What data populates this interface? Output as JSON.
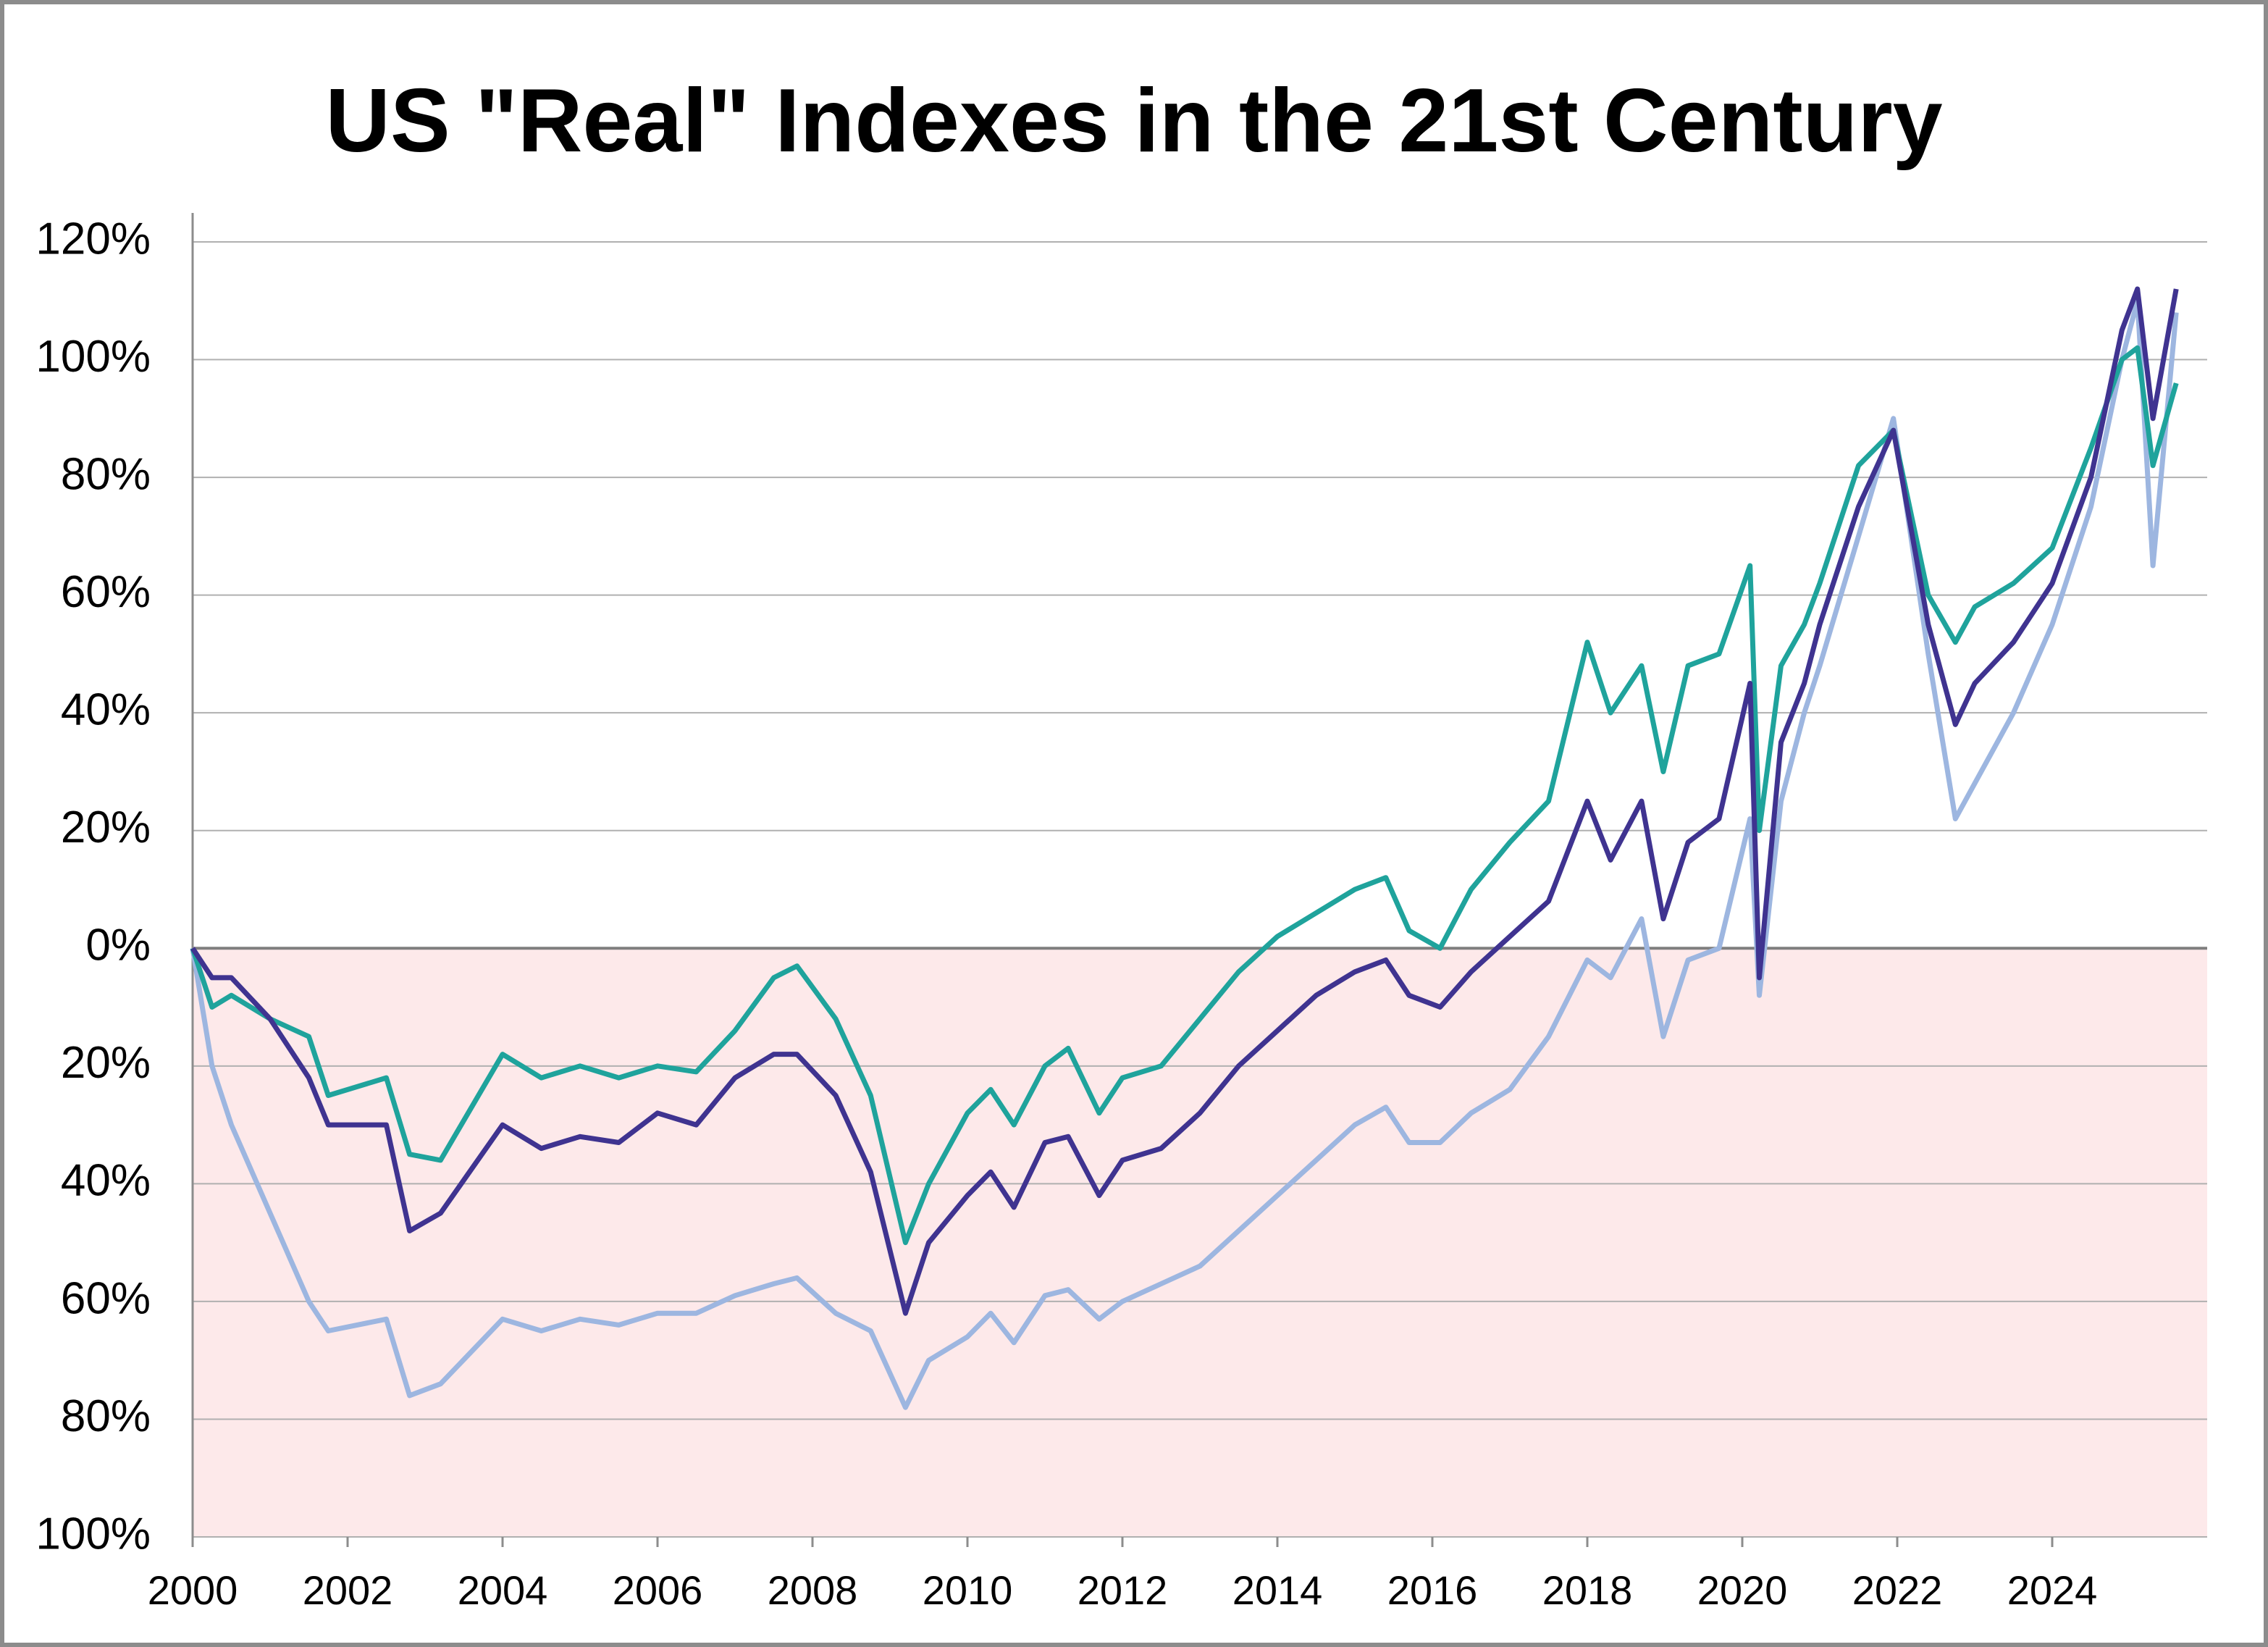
{
  "chart_data": {
    "type": "line",
    "title": "US \"Real\" Indexes in the 21st Century",
    "x": [
      2000,
      2000.25,
      2000.5,
      2001,
      2001.5,
      2001.75,
      2002.5,
      2002.8,
      2003.2,
      2004,
      2004.5,
      2005,
      2005.5,
      2006,
      2006.5,
      2007,
      2007.5,
      2007.8,
      2008.3,
      2008.75,
      2009.2,
      2009.5,
      2010,
      2010.3,
      2010.6,
      2011,
      2011.3,
      2011.7,
      2012,
      2012.5,
      2013,
      2013.5,
      2014,
      2014.5,
      2015,
      2015.4,
      2015.7,
      2016.1,
      2016.5,
      2017,
      2017.5,
      2018,
      2018.3,
      2018.7,
      2018.98,
      2019.3,
      2019.7,
      2020.1,
      2020.22,
      2020.5,
      2020.8,
      2021,
      2021.5,
      2021.95,
      2022.4,
      2022.75,
      2023,
      2023.5,
      2024,
      2024.5,
      2024.9,
      2025.1,
      2025.3,
      2025.6
    ],
    "series": [
      {
        "color": "#1fa39c",
        "values": [
          0,
          -10,
          -8,
          -12,
          -15,
          -25,
          -22,
          -35,
          -36,
          -18,
          -22,
          -20,
          -22,
          -20,
          -21,
          -14,
          -5,
          -3,
          -12,
          -25,
          -50,
          -40,
          -28,
          -24,
          -30,
          -20,
          -17,
          -28,
          -22,
          -20,
          -12,
          -4,
          2,
          6,
          10,
          12,
          3,
          0,
          10,
          18,
          25,
          52,
          40,
          48,
          30,
          48,
          50,
          65,
          20,
          48,
          55,
          62,
          82,
          88,
          60,
          52,
          58,
          62,
          68,
          85,
          100,
          102,
          82,
          96
        ]
      },
      {
        "color": "#3f3390",
        "values": [
          0,
          -5,
          -5,
          -12,
          -22,
          -30,
          -30,
          -48,
          -45,
          -30,
          -34,
          -32,
          -33,
          -28,
          -30,
          -22,
          -18,
          -18,
          -25,
          -38,
          -62,
          -50,
          -42,
          -38,
          -44,
          -33,
          -32,
          -42,
          -36,
          -34,
          -28,
          -20,
          -14,
          -8,
          -4,
          -2,
          -8,
          -10,
          -4,
          2,
          8,
          25,
          15,
          25,
          5,
          18,
          22,
          45,
          -5,
          35,
          45,
          55,
          75,
          88,
          55,
          38,
          45,
          52,
          62,
          80,
          105,
          112,
          90,
          112
        ]
      },
      {
        "color": "#9db6e0",
        "values": [
          0,
          -20,
          -30,
          -45,
          -60,
          -65,
          -63,
          -76,
          -74,
          -63,
          -65,
          -63,
          -64,
          -62,
          -62,
          -59,
          -57,
          -56,
          -62,
          -65,
          -78,
          -70,
          -66,
          -62,
          -67,
          -59,
          -58,
          -63,
          -60,
          -57,
          -54,
          -48,
          -42,
          -36,
          -30,
          -27,
          -33,
          -33,
          -28,
          -24,
          -15,
          -2,
          -5,
          5,
          -15,
          -2,
          0,
          22,
          -8,
          25,
          40,
          48,
          70,
          90,
          50,
          22,
          28,
          40,
          55,
          75,
          100,
          110,
          65,
          108
        ]
      }
    ],
    "xlim": [
      2000,
      2026
    ],
    "xticks": [
      2000,
      2002,
      2004,
      2006,
      2008,
      2010,
      2012,
      2014,
      2016,
      2018,
      2020,
      2022,
      2024
    ],
    "ylim": [
      -100,
      120
    ],
    "yticks": [
      {
        "value": -100,
        "label": "100%"
      },
      {
        "value": -80,
        "label": "80%"
      },
      {
        "value": -60,
        "label": "60%"
      },
      {
        "value": -40,
        "label": "40%"
      },
      {
        "value": -20,
        "label": "20%"
      },
      {
        "value": 0,
        "label": "0%"
      },
      {
        "value": 20,
        "label": "20%"
      },
      {
        "value": 40,
        "label": "40%"
      },
      {
        "value": 60,
        "label": "60%"
      },
      {
        "value": 80,
        "label": "80%"
      },
      {
        "value": 100,
        "label": "100%"
      },
      {
        "value": 120,
        "label": "120%"
      }
    ],
    "grid": true,
    "negative_region_color": "#fde9ea",
    "negative_label_color": "#ff0000"
  }
}
